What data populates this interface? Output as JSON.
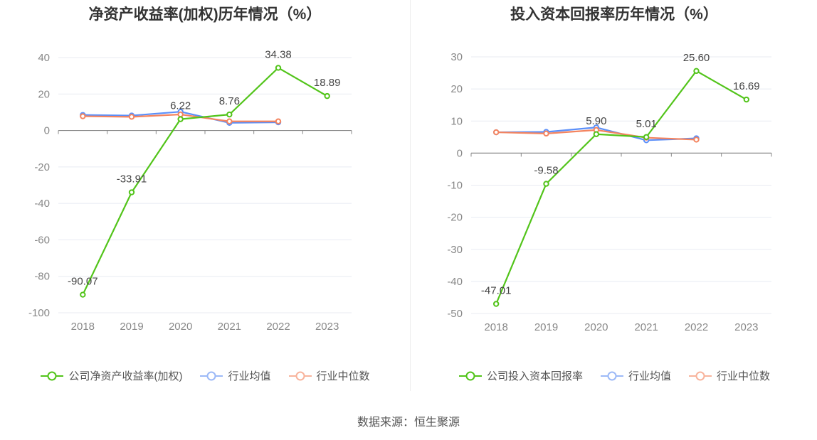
{
  "colors": {
    "company": "#52c41a",
    "average": "#5b8ff9",
    "median": "#f4845f"
  },
  "source": "数据来源：恒生聚源",
  "chart_data": [
    {
      "type": "line",
      "title": "净资产收益率(加权)历年情况（%）",
      "categories": [
        "2018",
        "2019",
        "2020",
        "2021",
        "2022",
        "2023"
      ],
      "ylim": [
        -100,
        40
      ],
      "yticks": [
        40,
        20,
        0,
        -20,
        -40,
        -60,
        -80,
        -100
      ],
      "series": [
        {
          "name": "公司净资产收益率(加权)",
          "values": [
            -90.07,
            -33.91,
            6.22,
            8.76,
            34.38,
            18.89
          ],
          "labels": [
            "-90.07",
            "-33.91",
            "6.22",
            "8.76",
            "34.38",
            "18.89"
          ]
        },
        {
          "name": "行业均值",
          "values": [
            8.5,
            8.2,
            10.3,
            4.2,
            4.5,
            null
          ]
        },
        {
          "name": "行业中位数",
          "values": [
            7.8,
            7.5,
            8.8,
            5.0,
            5.0,
            null
          ]
        }
      ]
    },
    {
      "type": "line",
      "title": "投入资本回报率历年情况（%）",
      "categories": [
        "2018",
        "2019",
        "2020",
        "2021",
        "2022",
        "2023"
      ],
      "ylim": [
        -50,
        30
      ],
      "yticks": [
        30,
        20,
        10,
        0,
        -10,
        -20,
        -30,
        -40,
        -50
      ],
      "series": [
        {
          "name": "公司投入资本回报率",
          "values": [
            -47.01,
            -9.58,
            5.9,
            5.01,
            25.6,
            16.69
          ],
          "labels": [
            "-47.01",
            "-9.58",
            "5.90",
            "5.01",
            "25.60",
            "16.69"
          ]
        },
        {
          "name": "行业均值",
          "values": [
            6.5,
            6.6,
            8.0,
            4.0,
            4.6,
            null
          ]
        },
        {
          "name": "行业中位数",
          "values": [
            6.5,
            6.1,
            7.2,
            4.8,
            4.2,
            null
          ]
        }
      ]
    }
  ]
}
